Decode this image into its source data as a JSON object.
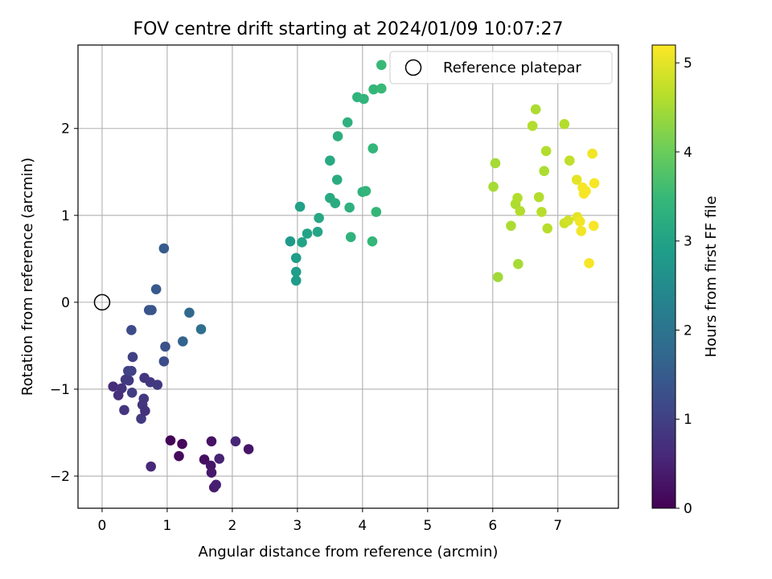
{
  "chart_data": {
    "type": "scatter",
    "title": "FOV centre drift starting at 2024/01/09 10:07:27",
    "xlabel": "Angular distance from reference (arcmin)",
    "ylabel": "Rotation from reference (arcmin)",
    "xlim": [
      -0.37,
      7.93
    ],
    "ylim": [
      -2.37,
      2.96
    ],
    "xticks": [
      0,
      1,
      2,
      3,
      4,
      5,
      6,
      7
    ],
    "yticks": [
      -2,
      -1,
      0,
      1,
      2
    ],
    "xtick_labels": [
      "0",
      "1",
      "2",
      "3",
      "4",
      "5",
      "6",
      "7"
    ],
    "ytick_labels": [
      "−2",
      "−1",
      "0",
      "1",
      "2"
    ],
    "grid": true,
    "colormap": "viridis",
    "colorbar": {
      "label": "Hours from first FF file",
      "range": [
        0,
        5.2
      ],
      "ticks": [
        0,
        1,
        2,
        3,
        4,
        5
      ],
      "tick_labels": [
        "0",
        "1",
        "2",
        "3",
        "4",
        "5"
      ]
    },
    "legend": {
      "position": "top-right",
      "entries": [
        {
          "label": "Reference platepar",
          "marker": "hollow-circle"
        }
      ]
    },
    "reference_point": {
      "x": 0,
      "y": 0
    },
    "series": [
      {
        "points": [
          [
            1.05,
            -1.59,
            0.05
          ],
          [
            1.23,
            -1.63,
            0.1
          ],
          [
            1.18,
            -1.77,
            0.15
          ],
          [
            1.57,
            -1.81,
            0.2
          ],
          [
            1.68,
            -1.6,
            0.25
          ],
          [
            1.67,
            -1.88,
            0.3
          ],
          [
            1.68,
            -1.96,
            0.35
          ],
          [
            1.72,
            -2.13,
            0.4
          ],
          [
            1.75,
            -2.1,
            0.45
          ],
          [
            1.8,
            -1.8,
            0.5
          ],
          [
            2.05,
            -1.6,
            0.55
          ],
          [
            2.25,
            -1.69,
            0.3
          ],
          [
            0.75,
            -1.89,
            0.6
          ],
          [
            0.17,
            -0.97,
            0.65
          ],
          [
            0.25,
            -1.07,
            0.7
          ],
          [
            0.3,
            -0.99,
            0.75
          ],
          [
            0.34,
            -1.24,
            0.8
          ],
          [
            0.36,
            -0.89,
            0.85
          ],
          [
            0.41,
            -0.9,
            0.9
          ],
          [
            0.46,
            -1.04,
            0.95
          ],
          [
            0.45,
            -0.79,
            1.0
          ],
          [
            0.6,
            -1.34,
            0.9
          ],
          [
            0.64,
            -1.11,
            0.85
          ],
          [
            0.62,
            -1.18,
            0.8
          ],
          [
            0.66,
            -1.25,
            0.75
          ],
          [
            0.65,
            -0.87,
            0.8
          ],
          [
            0.74,
            -0.92,
            0.85
          ],
          [
            0.85,
            -0.95,
            0.9
          ],
          [
            0.47,
            -0.63,
            1.0
          ],
          [
            0.4,
            -0.79,
            1.05
          ],
          [
            0.45,
            -0.32,
            1.2
          ],
          [
            0.95,
            -0.68,
            1.25
          ],
          [
            0.97,
            -0.51,
            1.3
          ],
          [
            0.72,
            -0.09,
            1.35
          ],
          [
            0.76,
            -0.09,
            1.4
          ],
          [
            0.83,
            0.15,
            1.45
          ],
          [
            0.95,
            0.62,
            1.5
          ],
          [
            1.24,
            -0.45,
            1.65
          ],
          [
            1.34,
            -0.12,
            1.75
          ],
          [
            1.52,
            -0.31,
            1.9
          ],
          [
            2.89,
            0.7,
            2.8
          ],
          [
            2.98,
            0.25,
            2.85
          ],
          [
            2.98,
            0.51,
            2.9
          ],
          [
            2.98,
            0.35,
            2.9
          ],
          [
            3.04,
            1.1,
            2.95
          ],
          [
            3.07,
            0.69,
            3.0
          ],
          [
            3.15,
            0.79,
            3.0
          ],
          [
            3.31,
            0.81,
            3.05
          ],
          [
            3.33,
            0.97,
            3.1
          ],
          [
            3.5,
            1.2,
            3.15
          ],
          [
            3.5,
            1.63,
            3.15
          ],
          [
            3.58,
            1.14,
            3.2
          ],
          [
            3.61,
            1.41,
            3.2
          ],
          [
            3.62,
            1.91,
            3.25
          ],
          [
            3.77,
            2.07,
            3.3
          ],
          [
            3.8,
            1.09,
            3.3
          ],
          [
            3.82,
            0.75,
            3.35
          ],
          [
            3.92,
            2.36,
            3.35
          ],
          [
            4.0,
            1.27,
            3.35
          ],
          [
            4.02,
            2.34,
            3.4
          ],
          [
            4.05,
            1.28,
            3.4
          ],
          [
            4.15,
            0.7,
            3.45
          ],
          [
            4.16,
            1.77,
            3.45
          ],
          [
            4.17,
            2.45,
            3.45
          ],
          [
            4.21,
            1.04,
            3.45
          ],
          [
            4.29,
            2.46,
            3.5
          ],
          [
            4.29,
            2.73,
            3.5
          ],
          [
            6.04,
            1.6,
            4.5
          ],
          [
            6.01,
            1.33,
            4.5
          ],
          [
            6.08,
            0.29,
            4.45
          ],
          [
            6.28,
            0.88,
            4.55
          ],
          [
            6.35,
            1.13,
            4.55
          ],
          [
            6.38,
            1.2,
            4.6
          ],
          [
            6.39,
            0.44,
            4.5
          ],
          [
            6.42,
            1.05,
            4.6
          ],
          [
            6.61,
            2.03,
            4.6
          ],
          [
            6.66,
            2.22,
            4.55
          ],
          [
            6.71,
            1.21,
            4.6
          ],
          [
            6.75,
            1.04,
            4.65
          ],
          [
            6.79,
            1.51,
            4.55
          ],
          [
            6.82,
            1.74,
            4.6
          ],
          [
            6.84,
            0.85,
            4.65
          ],
          [
            7.1,
            2.05,
            4.6
          ],
          [
            7.1,
            0.91,
            4.8
          ],
          [
            7.16,
            0.94,
            4.85
          ],
          [
            7.18,
            1.63,
            4.7
          ],
          [
            7.29,
            1.41,
            5.0
          ],
          [
            7.3,
            0.98,
            5.0
          ],
          [
            7.34,
            0.93,
            5.1
          ],
          [
            7.36,
            0.82,
            5.1
          ],
          [
            7.38,
            1.32,
            5.15
          ],
          [
            7.4,
            1.25,
            5.15
          ],
          [
            7.43,
            1.28,
            5.15
          ],
          [
            7.48,
            0.45,
            5.15
          ],
          [
            7.53,
            1.71,
            5.1
          ],
          [
            7.55,
            0.88,
            5.15
          ],
          [
            7.56,
            1.37,
            5.15
          ]
        ]
      }
    ]
  }
}
